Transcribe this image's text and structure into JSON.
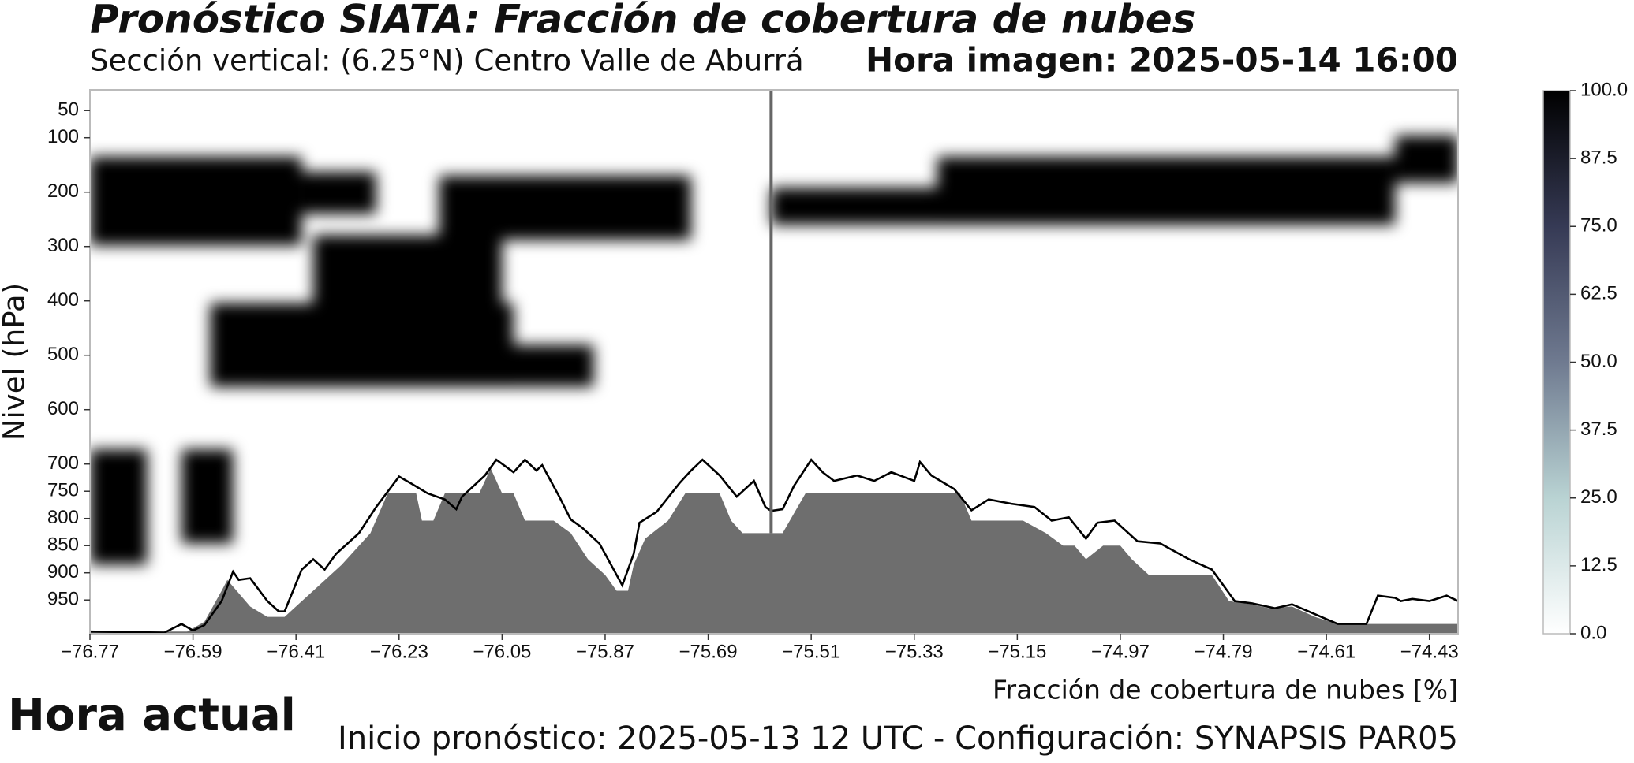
{
  "chart_data": {
    "type": "cross-section",
    "title": "Pronóstico SIATA: Fracción de cobertura de nubes",
    "subtitle": "Sección vertical: (6.25°N) Centro Valle de Aburrá",
    "image_time": "Hora imagen: 2025-05-14 16:00",
    "ylabel": "Nivel (hPa)",
    "xlabel": "Fracción de cobertura de nubes [%]",
    "current_label": "Hora actual",
    "footer": "Inicio pronóstico: 2025-05-13 12 UTC - Configuración: SYNAPSIS PAR05",
    "xlim": [
      -76.77,
      -74.38
    ],
    "ylim": [
      1012,
      12
    ],
    "xticks": [
      {
        "value": -76.77,
        "label": "−76.77"
      },
      {
        "value": -76.59,
        "label": "−76.59"
      },
      {
        "value": -76.41,
        "label": "−76.41"
      },
      {
        "value": -76.23,
        "label": "−76.23"
      },
      {
        "value": -76.05,
        "label": "−76.05"
      },
      {
        "value": -75.87,
        "label": "−75.87"
      },
      {
        "value": -75.69,
        "label": "−75.69"
      },
      {
        "value": -75.51,
        "label": "−75.51"
      },
      {
        "value": -75.33,
        "label": "−75.33"
      },
      {
        "value": -75.15,
        "label": "−75.15"
      },
      {
        "value": -74.97,
        "label": "−74.97"
      },
      {
        "value": -74.79,
        "label": "−74.79"
      },
      {
        "value": -74.61,
        "label": "−74.61"
      },
      {
        "value": -74.43,
        "label": "−74.43"
      }
    ],
    "yticks": [
      50,
      100,
      200,
      300,
      400,
      500,
      600,
      700,
      750,
      800,
      850,
      900,
      950
    ],
    "clim": [
      0,
      100
    ],
    "cticks": [
      {
        "value": 0,
        "label": "0.0"
      },
      {
        "value": 12.5,
        "label": "12.5"
      },
      {
        "value": 25,
        "label": "25.0"
      },
      {
        "value": 37.5,
        "label": "37.5"
      },
      {
        "value": 50,
        "label": "50.0"
      },
      {
        "value": 62.5,
        "label": "62.5"
      },
      {
        "value": 75,
        "label": "75.0"
      },
      {
        "value": 87.5,
        "label": "87.5"
      },
      {
        "value": 100,
        "label": "100.0"
      }
    ],
    "clouds": [
      {
        "x": [
          -76.77,
          -76.4
        ],
        "y": [
          135,
          298
        ],
        "value": 100
      },
      {
        "x": [
          -76.4,
          -76.27
        ],
        "y": [
          163,
          240
        ],
        "value": 100
      },
      {
        "x": [
          -76.16,
          -75.72
        ],
        "y": [
          170,
          288
        ],
        "value": 100
      },
      {
        "x": [
          -75.58,
          -74.49
        ],
        "y": [
          192,
          260
        ],
        "value": 100
      },
      {
        "x": [
          -75.29,
          -74.49
        ],
        "y": [
          135,
          260
        ],
        "value": 100
      },
      {
        "x": [
          -74.49,
          -74.38
        ],
        "y": [
          96,
          183
        ],
        "value": 100
      },
      {
        "x": [
          -76.56,
          -76.03
        ],
        "y": [
          404,
          558
        ],
        "value": 100
      },
      {
        "x": [
          -76.47,
          -75.89
        ],
        "y": [
          481,
          558
        ],
        "value": 100
      },
      {
        "x": [
          -76.38,
          -76.05
        ],
        "y": [
          279,
          423
        ],
        "value": 100
      },
      {
        "x": [
          -76.77,
          -76.67
        ],
        "y": [
          673,
          885
        ],
        "value": 100
      },
      {
        "x": [
          -76.61,
          -76.52
        ],
        "y": [
          673,
          846
        ],
        "value": 100
      }
    ],
    "marker_x": -75.58,
    "series": [
      {
        "type": "area",
        "color": "#6e6e6e",
        "x": [
          -76.77,
          -76.6,
          -76.57,
          -76.54,
          -76.53,
          -76.49,
          -76.46,
          -76.43,
          -76.38,
          -76.33,
          -76.28,
          -76.25,
          -76.2,
          -76.19,
          -76.17,
          -76.15,
          -76.09,
          -76.07,
          -76.05,
          -76.03,
          -76.01,
          -75.96,
          -75.93,
          -75.9,
          -75.87,
          -75.85,
          -75.83,
          -75.82,
          -75.8,
          -75.76,
          -75.73,
          -75.67,
          -75.65,
          -75.63,
          -75.56,
          -75.52,
          -75.25,
          -75.23,
          -75.14,
          -75.1,
          -75.07,
          -75.05,
          -75.03,
          -75.0,
          -74.97,
          -74.95,
          -74.92,
          -74.81,
          -74.78,
          -74.74,
          -74.71,
          -74.67,
          -74.63,
          -74.59,
          -74.38
        ],
        "values": [
          1008,
          1008,
          990,
          933,
          913,
          962,
          981,
          981,
          933,
          885,
          827,
          754,
          754,
          804,
          804,
          754,
          754,
          708,
          754,
          754,
          804,
          804,
          827,
          875,
          904,
          933,
          933,
          885,
          837,
          804,
          754,
          754,
          804,
          827,
          827,
          754,
          754,
          804,
          804,
          827,
          850,
          850,
          875,
          850,
          850,
          875,
          904,
          904,
          952,
          958,
          965,
          962,
          981,
          994,
          994
        ]
      },
      {
        "type": "line",
        "color": "#000000",
        "x": [
          -76.77,
          -76.64,
          -76.61,
          -76.59,
          -76.57,
          -76.54,
          -76.52,
          -76.51,
          -76.49,
          -76.46,
          -76.44,
          -76.43,
          -76.4,
          -76.38,
          -76.36,
          -76.34,
          -76.3,
          -76.27,
          -76.23,
          -76.21,
          -76.18,
          -76.15,
          -76.13,
          -76.12,
          -76.08,
          -76.06,
          -76.03,
          -76.01,
          -75.99,
          -75.98,
          -75.95,
          -75.93,
          -75.91,
          -75.88,
          -75.84,
          -75.82,
          -75.81,
          -75.78,
          -75.74,
          -75.72,
          -75.7,
          -75.67,
          -75.64,
          -75.61,
          -75.59,
          -75.58,
          -75.56,
          -75.54,
          -75.51,
          -75.49,
          -75.47,
          -75.43,
          -75.4,
          -75.37,
          -75.33,
          -75.32,
          -75.3,
          -75.26,
          -75.23,
          -75.2,
          -75.16,
          -75.12,
          -75.09,
          -75.06,
          -75.03,
          -75.01,
          -74.98,
          -74.94,
          -74.9,
          -74.85,
          -74.81,
          -74.77,
          -74.74,
          -74.7,
          -74.67,
          -74.61,
          -74.59,
          -74.54,
          -74.52,
          -74.49,
          -74.48,
          -74.46,
          -74.43,
          -74.4,
          -74.38
        ],
        "values": [
          1008,
          1010,
          994,
          1006,
          996,
          952,
          898,
          913,
          910,
          952,
          971,
          971,
          894,
          875,
          894,
          865,
          827,
          779,
          723,
          735,
          754,
          765,
          783,
          760,
          721,
          692,
          715,
          692,
          712,
          702,
          760,
          802,
          817,
          846,
          923,
          865,
          808,
          788,
          735,
          712,
          692,
          721,
          760,
          731,
          779,
          786,
          783,
          740,
          692,
          715,
          731,
          721,
          731,
          715,
          731,
          696,
          721,
          746,
          785,
          765,
          773,
          779,
          804,
          798,
          837,
          808,
          804,
          842,
          846,
          875,
          894,
          952,
          956,
          965,
          958,
          985,
          994,
          994,
          942,
          946,
          952,
          948,
          952,
          942,
          952
        ]
      }
    ]
  }
}
